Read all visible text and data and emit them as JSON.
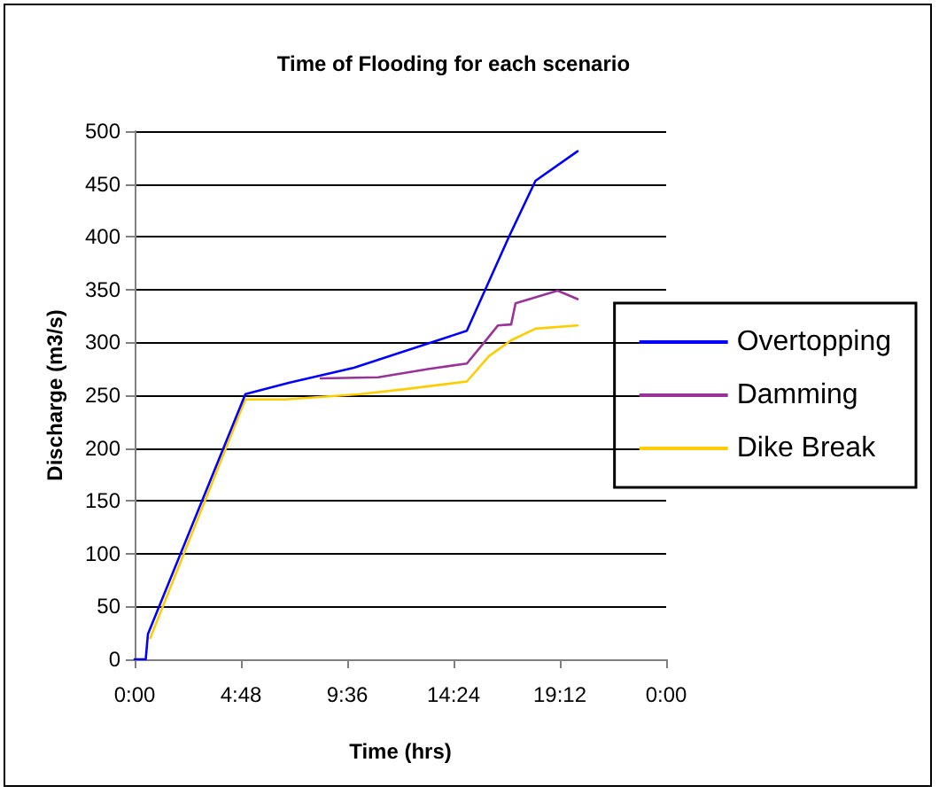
{
  "chart_data": {
    "type": "line",
    "title": "Time of Flooding for each scenario",
    "xlabel": "Time (hrs)",
    "ylabel": "Discharge (m3/s)",
    "xlim": [
      0,
      24
    ],
    "xticks": [
      {
        "value": 0,
        "label": "0:00"
      },
      {
        "value": 4.8,
        "label": "4:48"
      },
      {
        "value": 9.6,
        "label": "9:36"
      },
      {
        "value": 14.4,
        "label": "14:24"
      },
      {
        "value": 19.2,
        "label": "19:12"
      },
      {
        "value": 24,
        "label": "0:00"
      }
    ],
    "ylim": [
      0,
      500
    ],
    "yticks": [
      0,
      50,
      100,
      150,
      200,
      250,
      300,
      350,
      400,
      450,
      500
    ],
    "grid": "y",
    "legend": "right",
    "marker": "none",
    "line_style": "solid",
    "series": [
      {
        "name": "Overtopping",
        "color": "#0000ff",
        "x": [
          0,
          0.5,
          0.6,
          5.0,
          7.0,
          9.9,
          15.0,
          16.9,
          18.1,
          20.0
        ],
        "values": [
          0,
          0,
          24,
          251,
          262,
          276,
          311,
          400,
          453,
          481
        ]
      },
      {
        "name": "Damming",
        "color": "#993399",
        "x": [
          8.4,
          11.0,
          13.3,
          15.0,
          15.9,
          16.4,
          17.0,
          17.2,
          18.0,
          19.1,
          20.0
        ],
        "values": [
          266,
          267,
          275,
          280,
          303,
          316,
          317,
          337,
          342,
          349,
          341
        ]
      },
      {
        "name": "Dike Break",
        "color": "#ffcc00",
        "x": [
          0.7,
          5.0,
          6.8,
          10.2,
          12.3,
          15.0,
          16.0,
          17.0,
          18.1,
          20.0
        ],
        "values": [
          20,
          246,
          246,
          251,
          256,
          263,
          287,
          302,
          313,
          316
        ]
      }
    ]
  }
}
